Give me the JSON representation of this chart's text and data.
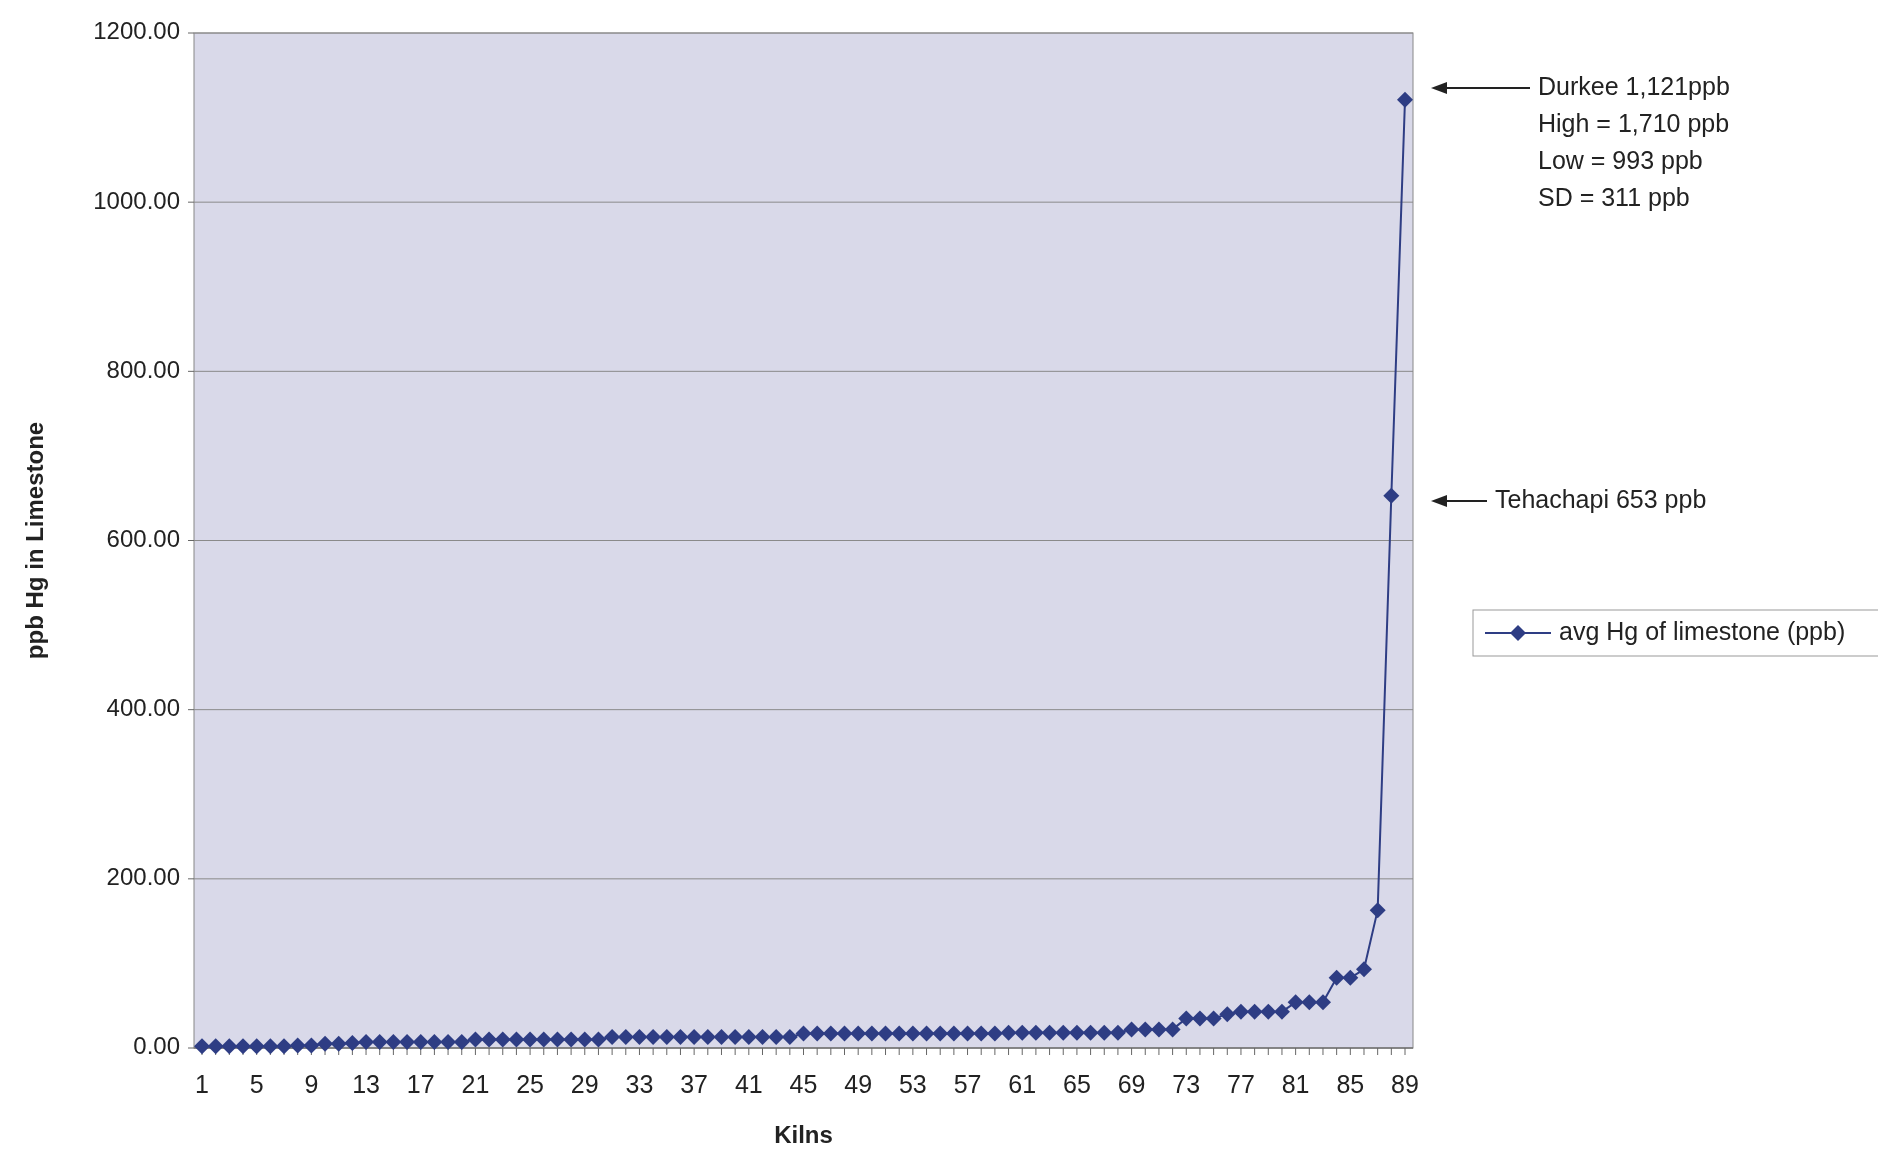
{
  "chart_data": {
    "type": "line",
    "xlabel": "Kilns",
    "ylabel": "ppb Hg in Limestone",
    "categories": [
      "1",
      null,
      null,
      null,
      "5",
      null,
      null,
      null,
      "9",
      null,
      null,
      null,
      "13",
      null,
      null,
      null,
      "17",
      null,
      null,
      null,
      "21",
      null,
      null,
      null,
      "25",
      null,
      null,
      null,
      "29",
      null,
      null,
      null,
      "33",
      null,
      null,
      null,
      "37",
      null,
      null,
      null,
      "41",
      null,
      null,
      null,
      "45",
      null,
      null,
      null,
      "49",
      null,
      null,
      null,
      "53",
      null,
      null,
      null,
      "57",
      null,
      null,
      null,
      "61",
      null,
      null,
      null,
      "65",
      null,
      null,
      null,
      "69",
      null,
      null,
      null,
      "73",
      null,
      null,
      null,
      "77",
      null,
      null,
      null,
      "81",
      null,
      null,
      null,
      "85",
      null,
      null,
      null,
      "89"
    ],
    "series": [
      {
        "name": "avg Hg of limestone (ppb)",
        "color": "#2e3d84",
        "values": [
          2,
          2,
          2,
          2,
          2,
          2,
          2,
          3,
          3,
          5,
          5,
          6,
          7,
          7,
          7,
          7,
          7,
          7,
          7,
          7,
          10,
          10,
          10,
          10,
          10,
          10,
          10,
          10,
          10,
          10,
          13,
          13,
          13,
          13,
          13,
          13,
          13,
          13,
          13,
          13,
          13,
          13,
          13,
          13,
          17,
          17,
          17,
          17,
          17,
          17,
          17,
          17,
          17,
          17,
          17,
          17,
          17,
          17,
          17,
          18,
          18,
          18,
          18,
          18,
          18,
          18,
          18,
          18,
          22,
          22,
          22,
          22,
          35,
          35,
          35,
          40,
          43,
          43,
          43,
          43,
          54,
          54,
          54,
          83,
          83,
          93,
          163,
          653,
          1121
        ]
      }
    ],
    "ylim": [
      0,
      1200
    ],
    "yticks": [
      {
        "value": 0,
        "label": "0.00"
      },
      {
        "value": 200,
        "label": "200.00"
      },
      {
        "value": 400,
        "label": "400.00"
      },
      {
        "value": 600,
        "label": "600.00"
      },
      {
        "value": 800,
        "label": "800.00"
      },
      {
        "value": 1000,
        "label": "1000.00"
      },
      {
        "value": 1200,
        "label": "1200.00"
      }
    ],
    "grid": "y",
    "legend": "right",
    "marker": "diamond",
    "line_style": "solid",
    "annotations": [
      "Durkee 1,121ppb",
      "High = 1,710 ppb",
      "Low = 993 ppb",
      "SD = 311 ppb",
      "Tehachapi 653 ppb"
    ]
  }
}
